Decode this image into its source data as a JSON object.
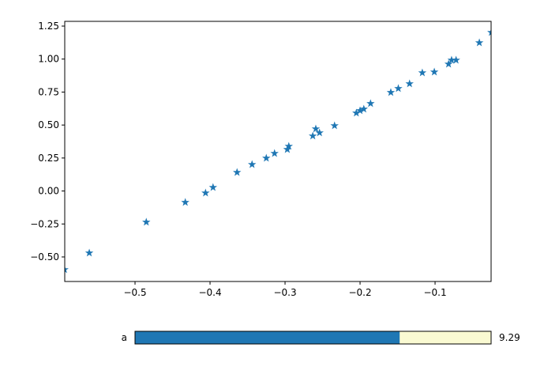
{
  "chart_data": {
    "type": "scatter",
    "marker": "star",
    "color": "#1f77b4",
    "x": [
      -0.594,
      -0.561,
      -0.485,
      -0.433,
      -0.406,
      -0.396,
      -0.364,
      -0.344,
      -0.325,
      -0.314,
      -0.297,
      -0.295,
      -0.263,
      -0.259,
      -0.254,
      -0.234,
      -0.205,
      -0.2,
      -0.195,
      -0.186,
      -0.159,
      -0.149,
      -0.134,
      -0.117,
      -0.101,
      -0.082,
      -0.078,
      -0.072,
      -0.041,
      -0.025
    ],
    "values": [
      -0.596,
      -0.47,
      -0.236,
      -0.086,
      -0.015,
      0.027,
      0.141,
      0.201,
      0.249,
      0.285,
      0.315,
      0.339,
      0.417,
      0.471,
      0.441,
      0.495,
      0.591,
      0.609,
      0.621,
      0.663,
      0.747,
      0.777,
      0.813,
      0.896,
      0.902,
      0.962,
      0.992,
      0.992,
      1.124,
      1.202
    ],
    "xlim": [
      -0.5937,
      -0.0253
    ],
    "ylim": [
      -0.686,
      1.286
    ],
    "xticks": [
      {
        "value": -0.5,
        "label": "−0.5"
      },
      {
        "value": -0.4,
        "label": "−0.4"
      },
      {
        "value": -0.3,
        "label": "−0.3"
      },
      {
        "value": -0.2,
        "label": "−0.2"
      },
      {
        "value": -0.1,
        "label": "−0.1"
      }
    ],
    "yticks": [
      {
        "value": -0.5,
        "label": "−0.50"
      },
      {
        "value": -0.25,
        "label": "−0.25"
      },
      {
        "value": 0,
        "label": "0.00"
      },
      {
        "value": 0.25,
        "label": "0.25"
      },
      {
        "value": 0.5,
        "label": "0.50"
      },
      {
        "value": 0.75,
        "label": "0.75"
      },
      {
        "value": 1,
        "label": "1.00"
      },
      {
        "value": 1.25,
        "label": "1.25"
      }
    ],
    "slider": {
      "label": "a",
      "value": 9.29,
      "min": 0,
      "max": 12.5,
      "color": "#1f77b4",
      "track_color": "#fafad2"
    }
  }
}
